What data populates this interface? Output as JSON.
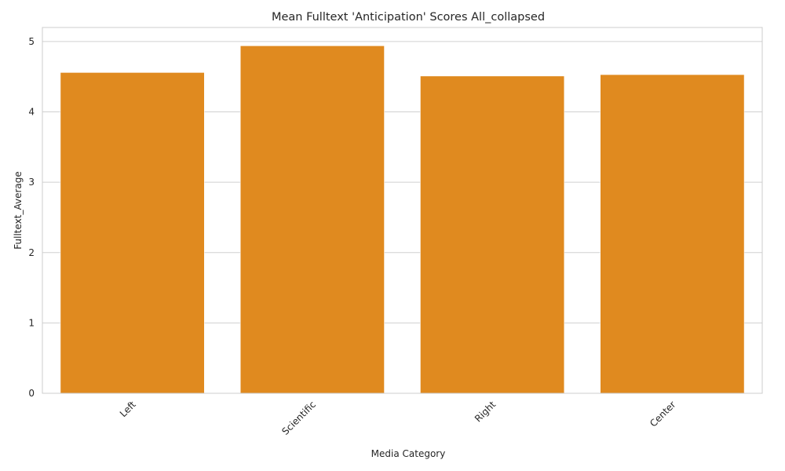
{
  "chart_data": {
    "type": "bar",
    "title": "Mean Fulltext 'Anticipation' Scores All_collapsed",
    "xlabel": "Media Category",
    "ylabel": "Fulltext_Average",
    "categories": [
      "Left",
      "Scientific",
      "Right",
      "Center"
    ],
    "values": [
      4.56,
      4.94,
      4.51,
      4.53
    ],
    "ylim": [
      0,
      5.2
    ],
    "yticks": [
      0,
      1,
      2,
      3,
      4,
      5
    ],
    "grid": true,
    "legend": "none",
    "bar_color": "#e08a1f"
  }
}
